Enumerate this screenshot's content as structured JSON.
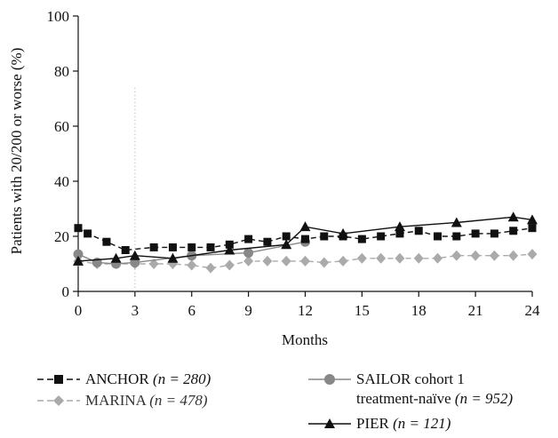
{
  "chart_data": {
    "type": "line",
    "xlabel": "Months",
    "ylabel": "Patients with 20/200 or worse (%)",
    "xlim": [
      0,
      24
    ],
    "ylim": [
      0,
      100
    ],
    "x_ticks": [
      "0",
      "3",
      "6",
      "9",
      "12",
      "15",
      "18",
      "21",
      "24"
    ],
    "y_ticks": [
      "0",
      "20",
      "40",
      "60",
      "80",
      "100"
    ],
    "reference_line_x": 3,
    "series": [
      {
        "name": "ANCHOR",
        "n_label": "(n = 280)",
        "color": "#111111",
        "dash": "dashed",
        "marker": "square",
        "x": [
          0,
          0.5,
          1.5,
          2.5,
          4,
          5,
          6,
          7,
          8,
          9,
          10,
          11,
          12,
          13,
          14,
          15,
          16,
          17,
          18,
          19,
          20,
          21,
          22,
          23,
          24
        ],
        "y": [
          23,
          21,
          18,
          15,
          16,
          16,
          16,
          16,
          17,
          19,
          18,
          20,
          19,
          20,
          20,
          19,
          20,
          21,
          22,
          20,
          20,
          21,
          21,
          22,
          23
        ]
      },
      {
        "name": "MARINA",
        "n_label": "(n = 478)",
        "color": "#aaaaaa",
        "dash": "dashed",
        "marker": "diamond",
        "x": [
          0,
          1,
          2,
          3,
          4,
          5,
          6,
          7,
          8,
          9,
          10,
          11,
          12,
          13,
          14,
          15,
          16,
          17,
          18,
          19,
          20,
          21,
          22,
          23,
          24
        ],
        "y": [
          11,
          10,
          10,
          10,
          10,
          10,
          9.5,
          8.5,
          9.5,
          11,
          11,
          11,
          11,
          10.5,
          11,
          12,
          12,
          12,
          12,
          12,
          13,
          13,
          13,
          13,
          13.5
        ]
      },
      {
        "name": "SAILOR cohort 1 treatment-naïve",
        "name_line1": "SAILOR cohort 1",
        "name_line2": "treatment-naïve",
        "n_label": "(n = 952)",
        "color": "#888888",
        "dash": "solid",
        "marker": "circle",
        "x": [
          0,
          1,
          2,
          3,
          6,
          9,
          12
        ],
        "y": [
          13.5,
          10.5,
          10,
          10.5,
          13,
          14,
          18
        ]
      },
      {
        "name": "PIER",
        "n_label": "(n = 121)",
        "color": "#111111",
        "dash": "solid",
        "marker": "triangle",
        "x": [
          0,
          2,
          3,
          5,
          8,
          11,
          12,
          14,
          17,
          20,
          23,
          24
        ],
        "y": [
          11,
          12,
          13,
          12,
          15,
          17,
          23.5,
          21,
          23.5,
          25,
          27,
          26
        ]
      }
    ]
  }
}
